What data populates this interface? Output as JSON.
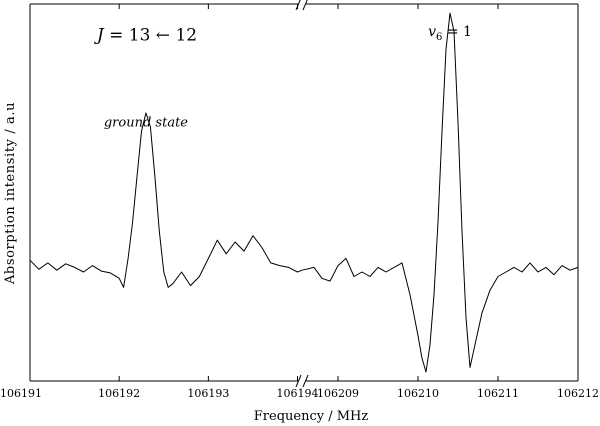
{
  "chart_data": {
    "type": "line",
    "title": "",
    "xlabel": "Frequency / MHz",
    "ylabel": "Absorption intensity / a.u",
    "broken_x_axis": true,
    "x_segments": [
      {
        "range": [
          106191,
          106194.05
        ],
        "ticks": [
          106191,
          106192,
          106193,
          106194
        ]
      },
      {
        "range": [
          106208.55,
          106212
        ],
        "ticks": [
          106209,
          106210,
          106211,
          106212
        ]
      }
    ],
    "ylim": [
      -1.25,
      2.9
    ],
    "grid": false,
    "legend": "none",
    "annotations": [
      {
        "id": "transition",
        "lhs": "J",
        "rel": "=",
        "mid": "13",
        "arrow": "←",
        "rhs": "12",
        "x": 106191.75,
        "y": 2.5
      },
      {
        "id": "ground",
        "text": "ground state",
        "x": 106192.3,
        "y": 1.55
      },
      {
        "id": "v6",
        "base": "v",
        "sub": "6",
        "rel": "=",
        "rhs": "1",
        "x": 106210.4,
        "y": 2.55
      }
    ],
    "series": [
      {
        "segment": 0,
        "x": [
          106191.0,
          106191.1,
          106191.2,
          106191.3,
          106191.4,
          106191.5,
          106191.6,
          106191.7,
          106191.8,
          106191.9,
          106192.0,
          106192.05,
          106192.1,
          106192.15,
          106192.2,
          106192.25,
          106192.3,
          106192.35,
          106192.4,
          106192.45,
          106192.5,
          106192.55,
          106192.6,
          106192.7,
          106192.8,
          106192.9,
          106193.0,
          106193.1,
          106193.2,
          106193.3,
          106193.4,
          106193.5,
          106193.6,
          106193.7,
          106193.8,
          106193.9,
          106194.0,
          106194.05
        ],
        "y": [
          0.08,
          -0.02,
          0.05,
          -0.03,
          0.04,
          0.0,
          -0.05,
          0.02,
          -0.04,
          -0.06,
          -0.12,
          -0.22,
          0.1,
          0.5,
          1.0,
          1.5,
          1.7,
          1.55,
          1.0,
          0.4,
          -0.05,
          -0.22,
          -0.18,
          -0.05,
          -0.2,
          -0.1,
          0.1,
          0.3,
          0.15,
          0.28,
          0.18,
          0.35,
          0.22,
          0.05,
          0.02,
          0.0,
          -0.05,
          -0.03
        ]
      },
      {
        "segment": 1,
        "x": [
          106208.55,
          106208.7,
          106208.8,
          106208.9,
          106209.0,
          106209.1,
          106209.2,
          106209.3,
          106209.4,
          106209.5,
          106209.6,
          106209.7,
          106209.8,
          106209.9,
          106210.0,
          106210.05,
          106210.1,
          106210.15,
          106210.2,
          106210.25,
          106210.3,
          106210.35,
          106210.4,
          106210.45,
          106210.5,
          106210.55,
          106210.6,
          106210.65,
          106210.7,
          106210.75,
          106210.8,
          106210.9,
          106211.0,
          106211.1,
          106211.2,
          106211.3,
          106211.4,
          106211.5,
          106211.6,
          106211.7,
          106211.8,
          106211.9,
          106212.0
        ],
        "y": [
          -0.03,
          0.0,
          -0.12,
          -0.15,
          0.02,
          0.1,
          -0.1,
          -0.05,
          -0.1,
          0.0,
          -0.05,
          0.0,
          0.05,
          -0.3,
          -0.75,
          -1.0,
          -1.15,
          -0.85,
          -0.3,
          0.5,
          1.5,
          2.4,
          2.8,
          2.6,
          1.6,
          0.4,
          -0.55,
          -1.1,
          -0.9,
          -0.7,
          -0.5,
          -0.25,
          -0.1,
          -0.05,
          0.0,
          -0.05,
          0.05,
          -0.05,
          0.0,
          -0.08,
          0.02,
          -0.03,
          0.0
        ]
      }
    ]
  }
}
